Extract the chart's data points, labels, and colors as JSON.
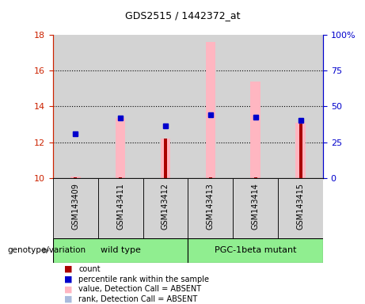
{
  "title": "GDS2515 / 1442372_at",
  "samples": [
    "GSM143409",
    "GSM143411",
    "GSM143412",
    "GSM143413",
    "GSM143414",
    "GSM143415"
  ],
  "ylim_left": [
    10,
    18
  ],
  "ylim_right": [
    0,
    100
  ],
  "yticks_left": [
    10,
    12,
    14,
    16,
    18
  ],
  "yticks_right": [
    0,
    25,
    50,
    75,
    100
  ],
  "ytick_right_labels": [
    "0",
    "25",
    "50",
    "75",
    "100%"
  ],
  "count_values": [
    10.05,
    10.05,
    12.2,
    10.05,
    10.05,
    13.1
  ],
  "percentile_values": [
    12.45,
    13.35,
    12.9,
    13.55,
    13.4,
    13.2
  ],
  "value_absent_top": [
    10.07,
    13.35,
    12.2,
    17.6,
    15.4,
    13.1
  ],
  "rank_absent_values": [
    12.45,
    13.35,
    12.9,
    13.55,
    13.4,
    13.2
  ],
  "count_color": "#AA0000",
  "percentile_color": "#0000CC",
  "value_absent_color": "#FFB6C1",
  "rank_absent_color": "#AABBDD",
  "bg_sample": "#D3D3D3",
  "left_axis_color": "#CC2200",
  "right_axis_color": "#0000CC",
  "green_color": "#90EE90",
  "legend_items": [
    "count",
    "percentile rank within the sample",
    "value, Detection Call = ABSENT",
    "rank, Detection Call = ABSENT"
  ],
  "legend_colors": [
    "#AA0000",
    "#0000CC",
    "#FFB6C1",
    "#AABBDD"
  ],
  "grid_lines": [
    12,
    14,
    16
  ],
  "wt_samples": [
    0,
    1,
    2
  ],
  "pgc_samples": [
    3,
    4,
    5
  ]
}
